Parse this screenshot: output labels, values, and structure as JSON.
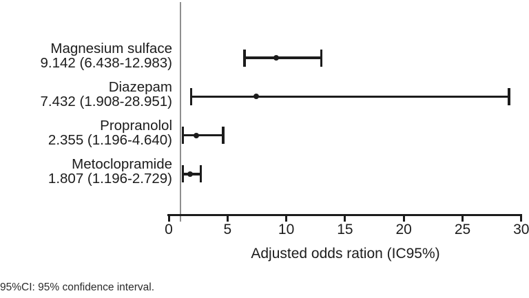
{
  "chart_data": {
    "type": "scatter",
    "variant": "forest-plot-error-bars",
    "title": "",
    "xlabel": "Adjusted odds ration (IC95%)",
    "ylabel": "",
    "xlim": [
      0,
      30
    ],
    "x_ticks": [
      0,
      5,
      10,
      15,
      20,
      25,
      30
    ],
    "reference_line_x": 1,
    "grid": false,
    "legend": "none",
    "series": [
      {
        "label": "Magnesium sulface",
        "value_text": "9.142 (6.438-12.983)",
        "odds_ratio": 9.142,
        "ci_low": 6.438,
        "ci_high": 12.983
      },
      {
        "label": "Diazepam",
        "value_text": "7.432 (1.908-28.951)",
        "odds_ratio": 7.432,
        "ci_low": 1.908,
        "ci_high": 28.951
      },
      {
        "label": "Propranolol",
        "value_text": "2.355 (1.196-4.640)",
        "odds_ratio": 2.355,
        "ci_low": 1.196,
        "ci_high": 4.64
      },
      {
        "label": "Metoclopramide",
        "value_text": "1.807 (1.196-2.729)",
        "odds_ratio": 1.807,
        "ci_low": 1.196,
        "ci_high": 2.729
      }
    ],
    "footnote": "95%CI: 95% confidence interval.",
    "colors": {
      "marker": "#1c1c1c",
      "error_bar": "#1c1c1c",
      "axis": "#1c1c1c",
      "text": "#1c1c1c",
      "reference_line": "#8f8f8f",
      "background": "#ffffff"
    }
  }
}
